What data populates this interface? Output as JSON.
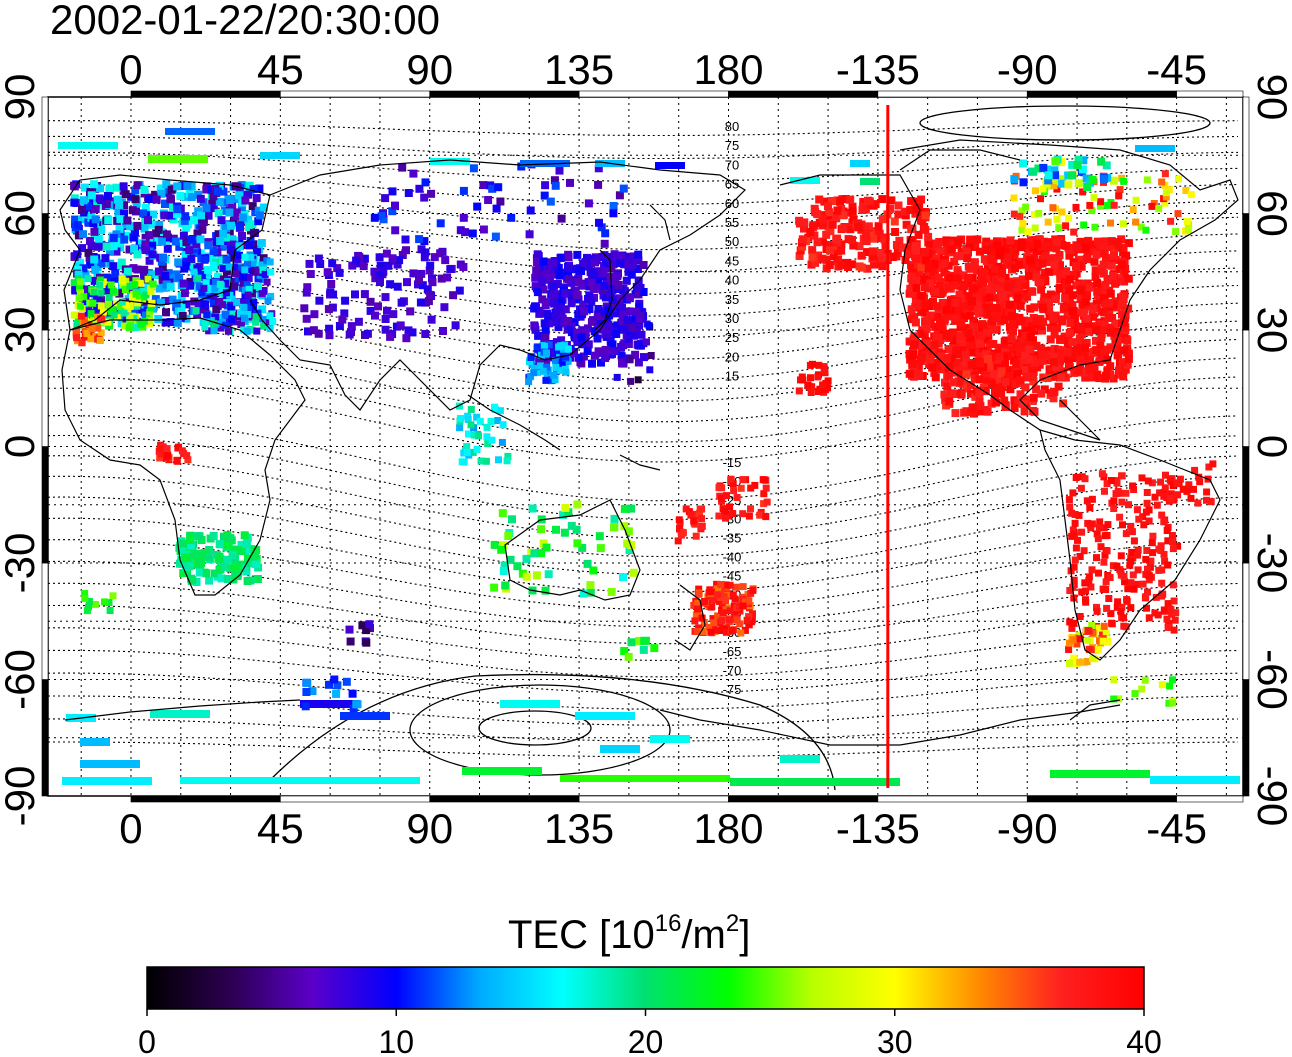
{
  "title": "2002-01-22/20:30:00",
  "axes": {
    "top_lon_labels": [
      "0",
      "45",
      "90",
      "135",
      "180",
      "-135",
      "-90",
      "-45"
    ],
    "bottom_lon_labels": [
      "0",
      "45",
      "90",
      "135",
      "180",
      "-135",
      "-90",
      "-45"
    ],
    "left_lat_labels": [
      "90",
      "60",
      "30",
      "0",
      "-30",
      "-60",
      "-90"
    ],
    "right_lat_labels": [
      "90",
      "60",
      "30",
      "0",
      "-30",
      "-60",
      "-90"
    ],
    "lon_ticks": [
      0,
      45,
      90,
      135,
      180,
      -135,
      -90,
      -45
    ],
    "lat_ticks": [
      90,
      60,
      30,
      0,
      -30,
      -60,
      -90
    ],
    "lon_range": [
      -25,
      335
    ],
    "lat_range": [
      -90,
      90
    ],
    "grid": "dotted, every 15 degrees"
  },
  "magnetic_latitude_contours": {
    "labels_north": [
      "80",
      "75",
      "70",
      "65",
      "60",
      "55",
      "50",
      "45",
      "40",
      "35",
      "30",
      "25",
      "20",
      "15"
    ],
    "labels_south": [
      "-15",
      "-20",
      "-25",
      "-30",
      "-35",
      "-40",
      "-45",
      "-50",
      "-55",
      "-60",
      "-65",
      "-70",
      "-75"
    ]
  },
  "terminator_line": {
    "lon": -132,
    "color": "#ff0000"
  },
  "colorbar": {
    "label_main": "TEC  [10",
    "label_sup1": "16",
    "label_mid": "/m",
    "label_sup2": "2",
    "label_end": "]",
    "min": 0,
    "max": 40,
    "tick_labels": [
      "0",
      "10",
      "20",
      "30",
      "40"
    ],
    "ticks": [
      0,
      10,
      20,
      30,
      40
    ],
    "colormap": [
      "#000000",
      "#2c0050",
      "#5a00c8",
      "#0000ff",
      "#00aaff",
      "#00ffff",
      "#00e070",
      "#00ff00",
      "#b8ff00",
      "#ffff00",
      "#ff8c00",
      "#ff2020",
      "#ff0000"
    ]
  }
}
